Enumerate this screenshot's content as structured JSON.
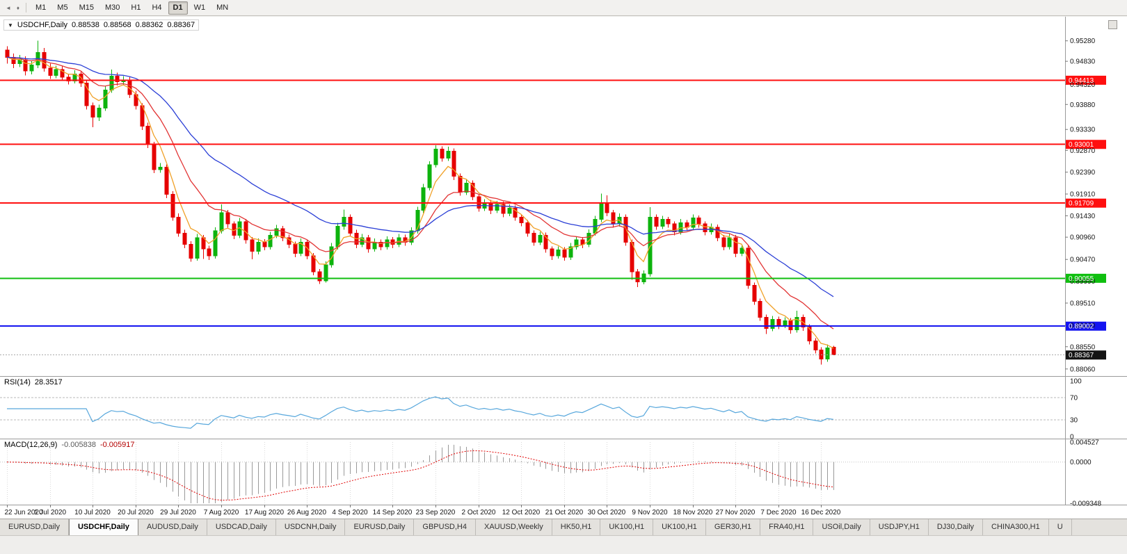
{
  "toolbar": {
    "timeframes": [
      "M1",
      "M5",
      "M15",
      "M30",
      "H1",
      "H4",
      "D1",
      "W1",
      "MN"
    ],
    "selected": "D1",
    "scroll_icon": "◄",
    "marker_icon": "♦"
  },
  "chart_header": {
    "collapse_arrow": "▼",
    "symbol": "USDCHF,Daily",
    "open": "0.88538",
    "high": "0.88568",
    "low": "0.88362",
    "close": "0.88367"
  },
  "indicators": {
    "rsi": {
      "label": "RSI(14)",
      "value": "28.3517",
      "period": 14,
      "axis": [
        "100",
        "70",
        "30",
        "0"
      ],
      "levels": [
        70,
        30
      ],
      "color": "#57a7dc"
    },
    "macd": {
      "label": "MACD(12,26,9)",
      "main_value": "-0.005838",
      "signal_value": "-0.005917",
      "fast": 12,
      "slow": 26,
      "signal": 9,
      "axis": [
        "0.004527",
        "0.0000",
        "-0.009348"
      ],
      "hist_color": "#9a9a9a",
      "signal_color": "#e00000"
    }
  },
  "chart_data": {
    "type": "candlestick",
    "title": "USDCHF,Daily",
    "ylim": [
      0.8795,
      0.9575
    ],
    "macd_ylim": [
      -0.009348,
      0.004527
    ],
    "up_color": "#0db30d",
    "down_color": "#e60000",
    "y_ticks": [
      "0.95280",
      "0.94830",
      "0.94320",
      "0.93880",
      "0.93330",
      "0.92870",
      "0.92390",
      "0.91910",
      "0.91430",
      "0.90960",
      "0.90470",
      "0.89990",
      "0.89510",
      "0.89020",
      "0.88550",
      "0.88060"
    ],
    "x_labels": [
      "22 Jun 2020",
      "1 Jul 2020",
      "10 Jul 2020",
      "20 Jul 2020",
      "29 Jul 2020",
      "7 Aug 2020",
      "17 Aug 2020",
      "26 Aug 2020",
      "4 Sep 2020",
      "14 Sep 2020",
      "23 Sep 2020",
      "2 Oct 2020",
      "12 Oct 2020",
      "21 Oct 2020",
      "30 Oct 2020",
      "9 Nov 2020",
      "18 Nov 2020",
      "27 Nov 2020",
      "7 Dec 2020",
      "16 Dec 2020"
    ],
    "x_tick_step": 7,
    "ma": [
      {
        "name": "ma-fast",
        "period": 5,
        "color": "#f0a128"
      },
      {
        "name": "ma-mid",
        "period": 13,
        "color": "#e23535"
      },
      {
        "name": "ma-slow",
        "period": 30,
        "color": "#2b3fd6"
      }
    ],
    "hlines": [
      {
        "price": 0.94413,
        "label": "0.94413",
        "color": "#ff0f0f"
      },
      {
        "price": 0.93001,
        "label": "0.93001",
        "color": "#ff0f0f"
      },
      {
        "price": 0.91709,
        "label": "0.91709",
        "color": "#ff0f0f"
      },
      {
        "price": 0.90055,
        "label": "0.90055",
        "color": "#0fbf0f"
      },
      {
        "price": 0.89002,
        "label": "0.89002",
        "color": "#1414f0"
      }
    ],
    "current_price": {
      "price": 0.88367,
      "label": "0.88367",
      "bg": "#141414"
    },
    "candles": [
      [
        0.9508,
        0.9516,
        0.9478,
        0.9492
      ],
      [
        0.9492,
        0.95,
        0.9468,
        0.9478
      ],
      [
        0.9478,
        0.9497,
        0.947,
        0.9486
      ],
      [
        0.9486,
        0.9494,
        0.9452,
        0.9462
      ],
      [
        0.9462,
        0.9484,
        0.9454,
        0.9475
      ],
      [
        0.9475,
        0.9528,
        0.9468,
        0.9502
      ],
      [
        0.9502,
        0.9512,
        0.946,
        0.9468
      ],
      [
        0.9468,
        0.9478,
        0.9444,
        0.9452
      ],
      [
        0.9452,
        0.9473,
        0.9446,
        0.9465
      ],
      [
        0.9465,
        0.9472,
        0.944,
        0.9448
      ],
      [
        0.9448,
        0.9456,
        0.9432,
        0.944
      ],
      [
        0.944,
        0.9463,
        0.9434,
        0.9455
      ],
      [
        0.9455,
        0.9462,
        0.9427,
        0.9435
      ],
      [
        0.9435,
        0.9441,
        0.9377,
        0.9385
      ],
      [
        0.9385,
        0.9392,
        0.9338,
        0.936
      ],
      [
        0.936,
        0.9388,
        0.9352,
        0.938
      ],
      [
        0.938,
        0.9428,
        0.9374,
        0.942
      ],
      [
        0.942,
        0.9465,
        0.9414,
        0.945
      ],
      [
        0.945,
        0.9458,
        0.943,
        0.9438
      ],
      [
        0.9438,
        0.945,
        0.943,
        0.9442
      ],
      [
        0.9442,
        0.9448,
        0.9402,
        0.941
      ],
      [
        0.941,
        0.9418,
        0.9377,
        0.9385
      ],
      [
        0.9385,
        0.9391,
        0.9332,
        0.934
      ],
      [
        0.934,
        0.9348,
        0.9292,
        0.93
      ],
      [
        0.93,
        0.9306,
        0.9237,
        0.9245
      ],
      [
        0.9245,
        0.9259,
        0.9238,
        0.925
      ],
      [
        0.925,
        0.9256,
        0.9182,
        0.919
      ],
      [
        0.919,
        0.9197,
        0.9132,
        0.914
      ],
      [
        0.914,
        0.9148,
        0.9097,
        0.9105
      ],
      [
        0.9105,
        0.9112,
        0.9072,
        0.908
      ],
      [
        0.908,
        0.9087,
        0.9042,
        0.905
      ],
      [
        0.905,
        0.9103,
        0.9044,
        0.9095
      ],
      [
        0.9095,
        0.9101,
        0.9048,
        0.907
      ],
      [
        0.907,
        0.9077,
        0.9046,
        0.9055
      ],
      [
        0.9055,
        0.9118,
        0.9049,
        0.911
      ],
      [
        0.911,
        0.9168,
        0.9104,
        0.915
      ],
      [
        0.915,
        0.9156,
        0.9117,
        0.9125
      ],
      [
        0.9125,
        0.9131,
        0.9092,
        0.91
      ],
      [
        0.91,
        0.9138,
        0.9094,
        0.913
      ],
      [
        0.913,
        0.9136,
        0.9082,
        0.909
      ],
      [
        0.909,
        0.9096,
        0.9047,
        0.9065
      ],
      [
        0.9065,
        0.9093,
        0.9058,
        0.9085
      ],
      [
        0.9085,
        0.9092,
        0.9067,
        0.9075
      ],
      [
        0.9075,
        0.9108,
        0.9069,
        0.91
      ],
      [
        0.91,
        0.9123,
        0.9094,
        0.9115
      ],
      [
        0.9115,
        0.9121,
        0.9087,
        0.9095
      ],
      [
        0.9095,
        0.9102,
        0.9072,
        0.908
      ],
      [
        0.908,
        0.9086,
        0.9052,
        0.906
      ],
      [
        0.906,
        0.9093,
        0.9054,
        0.9085
      ],
      [
        0.9085,
        0.9091,
        0.9047,
        0.9055
      ],
      [
        0.9055,
        0.9061,
        0.9012,
        0.902
      ],
      [
        0.902,
        0.9026,
        0.8993,
        0.9
      ],
      [
        0.9,
        0.9043,
        0.8996,
        0.9035
      ],
      [
        0.9035,
        0.9083,
        0.9029,
        0.9075
      ],
      [
        0.9075,
        0.9128,
        0.9069,
        0.912
      ],
      [
        0.912,
        0.9157,
        0.9112,
        0.914
      ],
      [
        0.914,
        0.9146,
        0.9097,
        0.9105
      ],
      [
        0.9105,
        0.9112,
        0.9072,
        0.908
      ],
      [
        0.908,
        0.9103,
        0.9074,
        0.9095
      ],
      [
        0.9095,
        0.9101,
        0.9062,
        0.907
      ],
      [
        0.907,
        0.9093,
        0.9064,
        0.9085
      ],
      [
        0.9085,
        0.9091,
        0.9067,
        0.9075
      ],
      [
        0.9075,
        0.9098,
        0.9069,
        0.909
      ],
      [
        0.909,
        0.9096,
        0.9072,
        0.908
      ],
      [
        0.908,
        0.9103,
        0.9074,
        0.9095
      ],
      [
        0.9095,
        0.9102,
        0.9077,
        0.9085
      ],
      [
        0.9085,
        0.9118,
        0.9079,
        0.911
      ],
      [
        0.911,
        0.9163,
        0.9104,
        0.9155
      ],
      [
        0.9155,
        0.9213,
        0.9149,
        0.9205
      ],
      [
        0.9205,
        0.9263,
        0.9199,
        0.9255
      ],
      [
        0.9255,
        0.9298,
        0.9249,
        0.929
      ],
      [
        0.929,
        0.9296,
        0.9262,
        0.927
      ],
      [
        0.927,
        0.9295,
        0.9264,
        0.9285
      ],
      [
        0.9285,
        0.9291,
        0.9222,
        0.923
      ],
      [
        0.923,
        0.9236,
        0.9187,
        0.9195
      ],
      [
        0.9195,
        0.9224,
        0.9189,
        0.9215
      ],
      [
        0.9215,
        0.9221,
        0.9177,
        0.9185
      ],
      [
        0.9185,
        0.9191,
        0.9152,
        0.916
      ],
      [
        0.916,
        0.918,
        0.9154,
        0.9172
      ],
      [
        0.9172,
        0.9178,
        0.9147,
        0.9155
      ],
      [
        0.9155,
        0.9176,
        0.9149,
        0.9168
      ],
      [
        0.9168,
        0.9174,
        0.914,
        0.9148
      ],
      [
        0.9148,
        0.9168,
        0.9142,
        0.916
      ],
      [
        0.916,
        0.9166,
        0.9132,
        0.914
      ],
      [
        0.914,
        0.9146,
        0.912,
        0.9128
      ],
      [
        0.9128,
        0.9134,
        0.9097,
        0.9105
      ],
      [
        0.9105,
        0.9111,
        0.9077,
        0.9085
      ],
      [
        0.9085,
        0.9108,
        0.9079,
        0.91
      ],
      [
        0.91,
        0.9106,
        0.9062,
        0.907
      ],
      [
        0.907,
        0.9076,
        0.9046,
        0.9055
      ],
      [
        0.9055,
        0.9076,
        0.9049,
        0.9068
      ],
      [
        0.9068,
        0.9074,
        0.9044,
        0.9052
      ],
      [
        0.9052,
        0.9083,
        0.9046,
        0.9075
      ],
      [
        0.9075,
        0.9098,
        0.9069,
        0.909
      ],
      [
        0.909,
        0.9096,
        0.9072,
        0.908
      ],
      [
        0.908,
        0.9113,
        0.9074,
        0.9105
      ],
      [
        0.9105,
        0.9143,
        0.9099,
        0.9135
      ],
      [
        0.9135,
        0.9192,
        0.9129,
        0.917
      ],
      [
        0.917,
        0.9188,
        0.9142,
        0.915
      ],
      [
        0.915,
        0.9156,
        0.9117,
        0.9125
      ],
      [
        0.9125,
        0.9148,
        0.9119,
        0.914
      ],
      [
        0.914,
        0.9146,
        0.9077,
        0.9085
      ],
      [
        0.9085,
        0.9091,
        0.9002,
        0.902
      ],
      [
        0.902,
        0.9026,
        0.8986,
        0.8998
      ],
      [
        0.8998,
        0.9023,
        0.8992,
        0.9015
      ],
      [
        0.9015,
        0.9162,
        0.9009,
        0.914
      ],
      [
        0.914,
        0.9146,
        0.9112,
        0.912
      ],
      [
        0.912,
        0.9143,
        0.9114,
        0.9135
      ],
      [
        0.9135,
        0.9141,
        0.9117,
        0.9125
      ],
      [
        0.9125,
        0.9131,
        0.91,
        0.9108
      ],
      [
        0.9108,
        0.9136,
        0.9102,
        0.9128
      ],
      [
        0.9128,
        0.9134,
        0.911,
        0.9118
      ],
      [
        0.9118,
        0.9146,
        0.9112,
        0.9138
      ],
      [
        0.9138,
        0.9144,
        0.9117,
        0.9125
      ],
      [
        0.9125,
        0.9131,
        0.91,
        0.9108
      ],
      [
        0.9108,
        0.9126,
        0.9102,
        0.9118
      ],
      [
        0.9118,
        0.9124,
        0.9087,
        0.9095
      ],
      [
        0.9095,
        0.9101,
        0.9067,
        0.9075
      ],
      [
        0.9075,
        0.9103,
        0.9069,
        0.9095
      ],
      [
        0.9095,
        0.9101,
        0.9052,
        0.906
      ],
      [
        0.906,
        0.908,
        0.9054,
        0.9072
      ],
      [
        0.9072,
        0.9078,
        0.8982,
        0.899
      ],
      [
        0.899,
        0.8996,
        0.8947,
        0.8955
      ],
      [
        0.8955,
        0.8961,
        0.8912,
        0.892
      ],
      [
        0.892,
        0.8926,
        0.8883,
        0.8895
      ],
      [
        0.8895,
        0.8923,
        0.8889,
        0.8915
      ],
      [
        0.8915,
        0.8921,
        0.8894,
        0.8902
      ],
      [
        0.8902,
        0.892,
        0.8896,
        0.8912
      ],
      [
        0.8912,
        0.8918,
        0.8884,
        0.8892
      ],
      [
        0.8892,
        0.8934,
        0.8886,
        0.892
      ],
      [
        0.892,
        0.8926,
        0.889,
        0.8898
      ],
      [
        0.8898,
        0.8904,
        0.886,
        0.8868
      ],
      [
        0.8868,
        0.8874,
        0.884,
        0.8848
      ],
      [
        0.8848,
        0.8854,
        0.8816,
        0.8828
      ],
      [
        0.8828,
        0.886,
        0.8822,
        0.8852
      ],
      [
        0.88538,
        0.88568,
        0.88362,
        0.88367
      ]
    ]
  },
  "tabs": {
    "items": [
      "EURUSD,Daily",
      "USDCHF,Daily",
      "AUDUSD,Daily",
      "USDCAD,Daily",
      "USDCNH,Daily",
      "EURUSD,Daily",
      "GBPUSD,H4",
      "XAUUSD,Weekly",
      "HK50,H1",
      "UK100,H1",
      "UK100,H1",
      "GER30,H1",
      "FRA40,H1",
      "USOil,Daily",
      "USDJPY,H1",
      "DJ30,Daily",
      "CHINA300,H1",
      "U"
    ],
    "active_index": 1
  }
}
